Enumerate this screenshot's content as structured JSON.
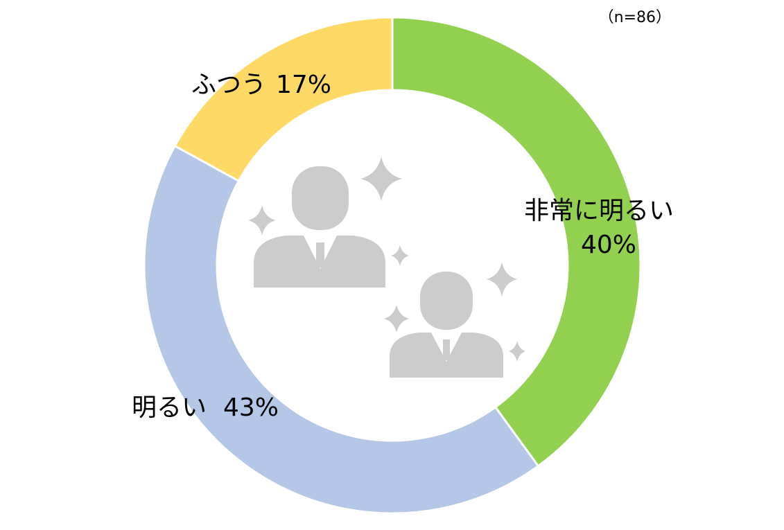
{
  "chart_data": {
    "type": "pie",
    "style": "donut",
    "note": "（n=86）",
    "categories": [
      "非常に明るい",
      "明るい",
      "ふつう"
    ],
    "values": [
      40,
      43,
      17
    ],
    "value_labels": [
      "40%",
      "43%",
      "17%"
    ],
    "colors": [
      "#92d050",
      "#b4c7e7",
      "#ffd966"
    ],
    "start": "top, clockwise"
  },
  "center_icon": "business-people-sparkle-icon"
}
